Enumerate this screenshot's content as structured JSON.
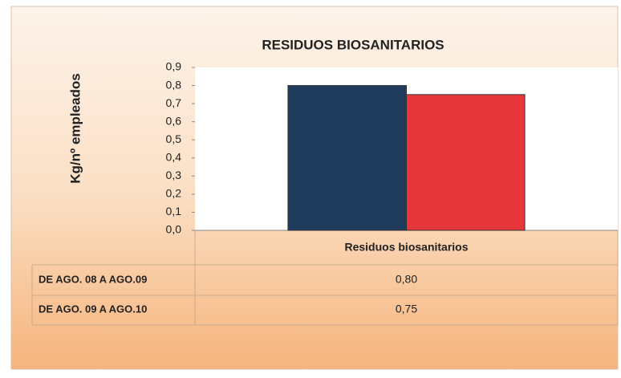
{
  "chart_data": {
    "type": "bar",
    "title": "RESIDUOS BIOSANITARIOS",
    "y_label": "Kg/nº empleados",
    "categories": [
      "Residuos biosanitarios"
    ],
    "series": [
      {
        "name": "DE AGO. 08 A AGO.09",
        "color": "#1f3b5c",
        "values": [
          0.8
        ],
        "value_labels": [
          "0,80"
        ]
      },
      {
        "name": "DE AGO. 09 A AGO.10",
        "color": "#e8373a",
        "values": [
          0.75
        ],
        "value_labels": [
          "0,75"
        ]
      }
    ],
    "ylim": [
      0,
      0.9
    ],
    "yticks": [
      {
        "value": 0,
        "label": "0,0"
      },
      {
        "value": 0.1,
        "label": "0,1"
      },
      {
        "value": 0.2,
        "label": "0,2"
      },
      {
        "value": 0.3,
        "label": "0,3"
      },
      {
        "value": 0.4,
        "label": "0,4"
      },
      {
        "value": 0.5,
        "label": "0,5"
      },
      {
        "value": 0.6,
        "label": "0,6"
      },
      {
        "value": 0.7,
        "label": "0,7"
      },
      {
        "value": 0.8,
        "label": "0,8"
      },
      {
        "value": 0.9,
        "label": "0,9"
      }
    ]
  }
}
